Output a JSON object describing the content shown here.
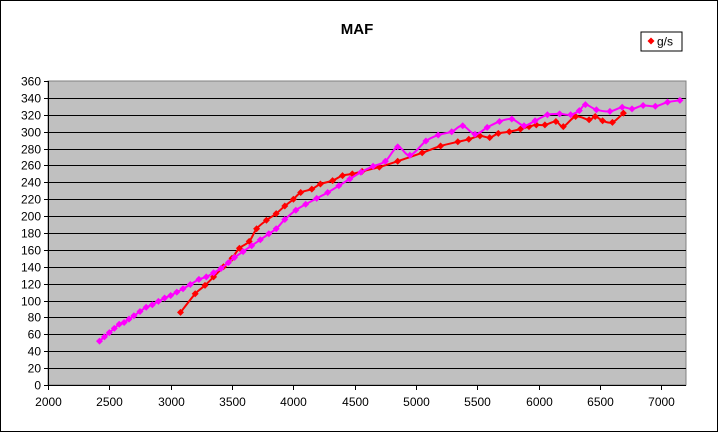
{
  "chart_data": {
    "type": "scatter",
    "title": "MAF",
    "xlabel": "",
    "ylabel": "",
    "xlim": [
      2000,
      7200
    ],
    "ylim": [
      0,
      360
    ],
    "x_ticks": [
      2000,
      2500,
      3000,
      3500,
      4000,
      4500,
      5000,
      5500,
      6000,
      6500,
      7000
    ],
    "y_ticks": [
      0,
      20,
      40,
      60,
      80,
      100,
      120,
      140,
      160,
      180,
      200,
      220,
      240,
      260,
      280,
      300,
      320,
      340,
      360
    ],
    "grid": true,
    "plot_background": "#c0c0c0",
    "legend_position": "top-right",
    "series": [
      {
        "name": "g/s",
        "color": "#ff0000",
        "marker": "diamond",
        "line": true,
        "x": [
          3080,
          3200,
          3280,
          3350,
          3430,
          3500,
          3560,
          3640,
          3700,
          3780,
          3860,
          3930,
          4000,
          4060,
          4150,
          4220,
          4320,
          4400,
          4480,
          4560,
          4700,
          4850,
          5050,
          5200,
          5340,
          5430,
          5520,
          5600,
          5670,
          5760,
          5850,
          5920,
          5980,
          6050,
          6140,
          6200,
          6300,
          6410,
          6460,
          6520,
          6600,
          6690
        ],
        "y": [
          86,
          108,
          118,
          128,
          140,
          150,
          162,
          170,
          185,
          195,
          203,
          212,
          220,
          228,
          232,
          238,
          242,
          248,
          250,
          253,
          258,
          265,
          275,
          283,
          288,
          291,
          295,
          293,
          298,
          300,
          303,
          306,
          308,
          308,
          312,
          306,
          318,
          314,
          318,
          313,
          311,
          322
        ]
      },
      {
        "name": "",
        "color": "#ff00ff",
        "marker": "diamond",
        "line": true,
        "x": [
          2420,
          2460,
          2500,
          2540,
          2580,
          2620,
          2660,
          2700,
          2750,
          2800,
          2850,
          2900,
          2950,
          3000,
          3050,
          3100,
          3160,
          3230,
          3290,
          3350,
          3410,
          3470,
          3520,
          3590,
          3660,
          3730,
          3800,
          3860,
          3930,
          4020,
          4100,
          4190,
          4280,
          4370,
          4460,
          4550,
          4650,
          4750,
          4850,
          4950,
          5080,
          5180,
          5290,
          5380,
          5480,
          5580,
          5680,
          5780,
          5880,
          5970,
          6070,
          6170,
          6260,
          6330,
          6380,
          6470,
          6580,
          6680,
          6760,
          6850,
          6950,
          7050,
          7150
        ],
        "y": [
          52,
          57,
          62,
          67,
          72,
          74,
          78,
          82,
          87,
          92,
          95,
          99,
          103,
          106,
          110,
          114,
          119,
          125,
          128,
          133,
          138,
          145,
          151,
          158,
          165,
          172,
          179,
          185,
          196,
          207,
          214,
          221,
          228,
          236,
          244,
          252,
          259,
          265,
          282,
          272,
          289,
          296,
          300,
          307,
          297,
          305,
          312,
          315,
          307,
          313,
          320,
          321,
          320,
          325,
          332,
          326,
          324,
          329,
          327,
          331,
          330,
          335,
          337
        ]
      }
    ]
  }
}
